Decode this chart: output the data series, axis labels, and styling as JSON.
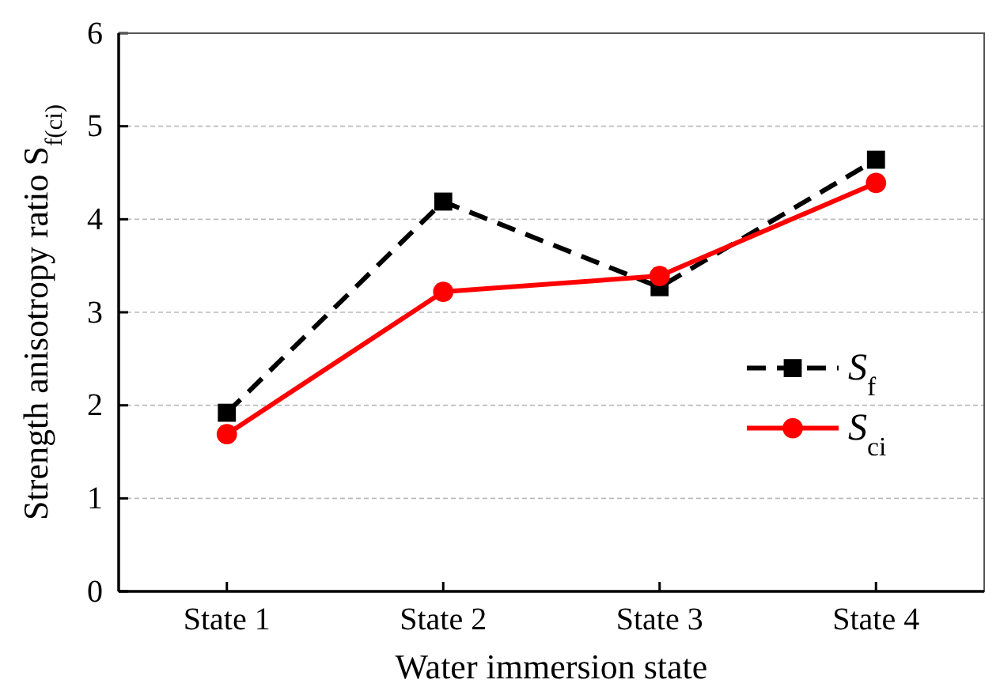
{
  "chart_data": {
    "type": "line",
    "xlabel": "Water immersion state",
    "ylabel": "Strength anisotropy ratio S$_{f(ci)}$",
    "categories": [
      "State 1",
      "State 2",
      "State 3",
      "State 4"
    ],
    "series": [
      {
        "name": "S$_{f}$",
        "color": "#000000",
        "marker": "square",
        "line_style": "dashed",
        "values": [
          1.92,
          4.19,
          3.27,
          4.64
        ]
      },
      {
        "name": "S$_{ci}$",
        "color": "#ff0000",
        "marker": "circle",
        "line_style": "solid",
        "values": [
          1.69,
          3.22,
          3.39,
          4.39
        ]
      }
    ],
    "ylim": [
      0,
      6
    ],
    "yticks": [
      0,
      1,
      2,
      3,
      4,
      5,
      6
    ],
    "grid": "y",
    "legend": "right"
  }
}
